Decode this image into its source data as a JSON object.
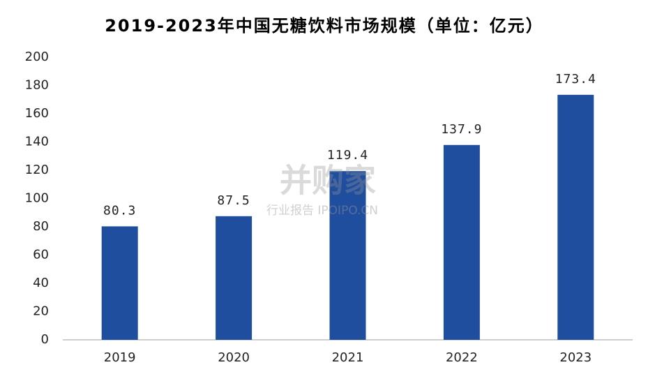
{
  "chart_data": {
    "type": "bar",
    "title": "2019-2023年中国无糖饮料市场规模（单位：亿元）",
    "categories": [
      "2019",
      "2020",
      "2021",
      "2022",
      "2023"
    ],
    "values": [
      80.3,
      87.5,
      119.4,
      137.9,
      173.4
    ],
    "color": "#1f4e9e",
    "ylim": [
      0,
      200
    ],
    "yticks": [
      0,
      20,
      40,
      60,
      80,
      100,
      120,
      140,
      160,
      180,
      200
    ],
    "grid": false,
    "watermark": [
      "并购家",
      "行业报告 IPOIPO.CN"
    ]
  }
}
